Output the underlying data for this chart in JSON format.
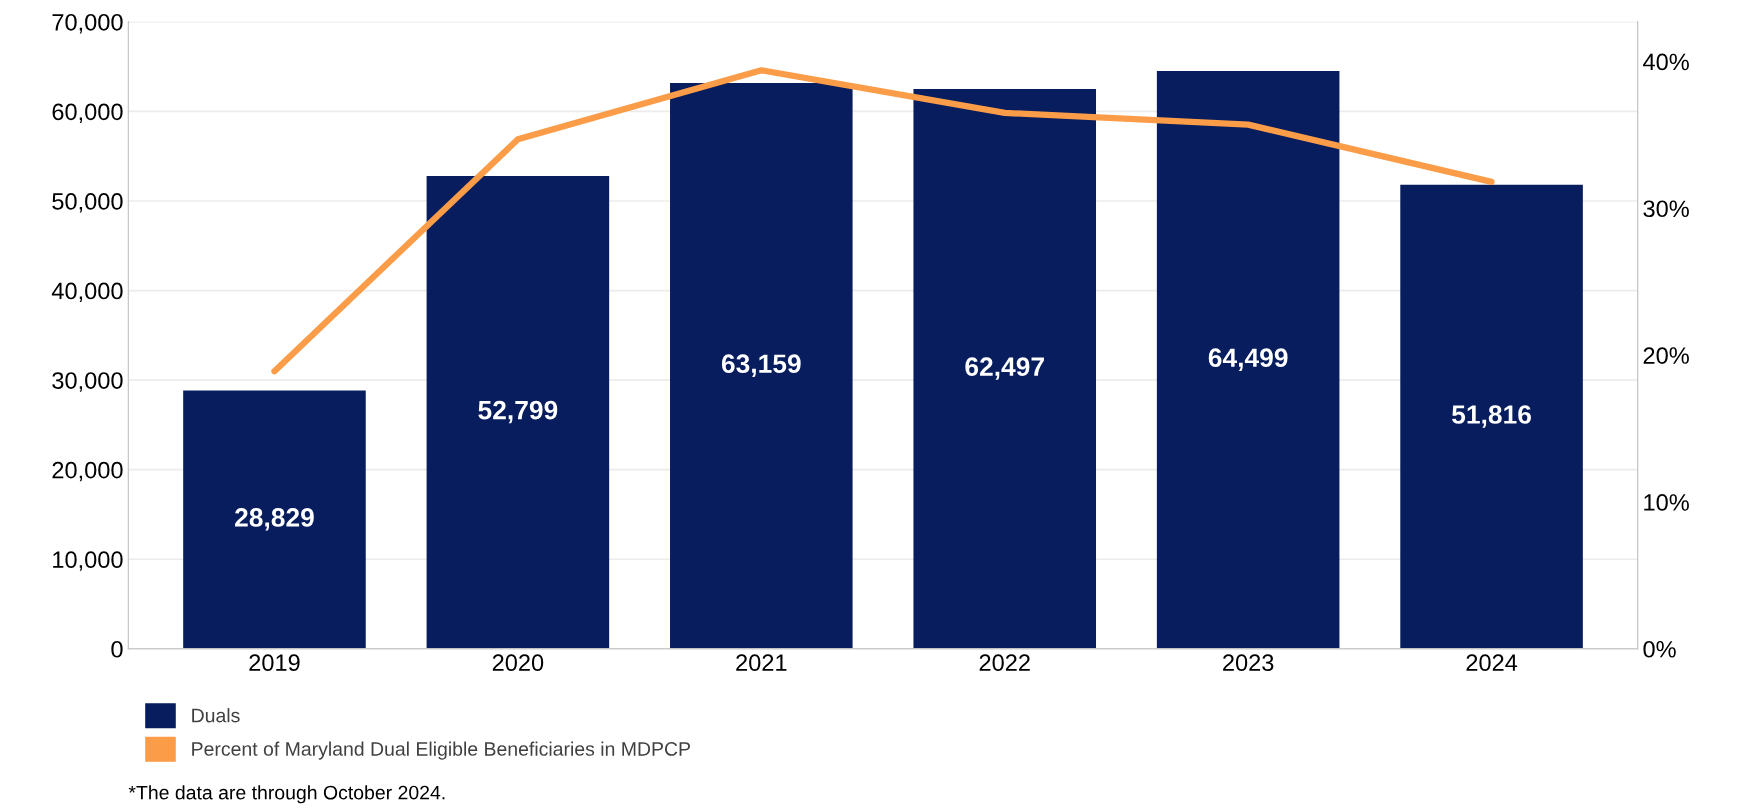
{
  "chart_data": {
    "type": "bar",
    "categories": [
      "2019",
      "2020",
      "2021",
      "2022",
      "2023",
      "2024"
    ],
    "series": [
      {
        "name": "Duals",
        "color": "#071d5e",
        "values": [
          28829,
          52799,
          63159,
          62497,
          64499,
          51816
        ],
        "value_labels": [
          "28,829",
          "52,799",
          "63,159",
          "62,497",
          "64,499",
          "51,816"
        ]
      },
      {
        "name": "Percent of Maryland Dual Eligible Beneficiaries in MDPCP",
        "type": "line",
        "axis": "y2",
        "color": "#fb9c48",
        "values": [
          18.9,
          34.7,
          39.4,
          36.5,
          35.7,
          31.8
        ]
      }
    ],
    "ylim": [
      0,
      70000
    ],
    "yticks": [
      {
        "value": 0,
        "label": "0"
      },
      {
        "value": 10000,
        "label": "10,000"
      },
      {
        "value": 20000,
        "label": "20,000"
      },
      {
        "value": 30000,
        "label": "30,000"
      },
      {
        "value": 40000,
        "label": "40,000"
      },
      {
        "value": 50000,
        "label": "50,000"
      },
      {
        "value": 60000,
        "label": "60,000"
      },
      {
        "value": 70000,
        "label": "70,000"
      }
    ],
    "y2lim": [
      0,
      42.7
    ],
    "y2ticks": [
      {
        "value": 0,
        "label": "0%"
      },
      {
        "value": 10,
        "label": "10%"
      },
      {
        "value": 20,
        "label": "20%"
      },
      {
        "value": 30,
        "label": "30%"
      },
      {
        "value": 40,
        "label": "40%"
      }
    ],
    "grid": "y",
    "legend": "bottom left",
    "marker": "none",
    "annotations": [
      "*The data are through October 2024."
    ]
  }
}
